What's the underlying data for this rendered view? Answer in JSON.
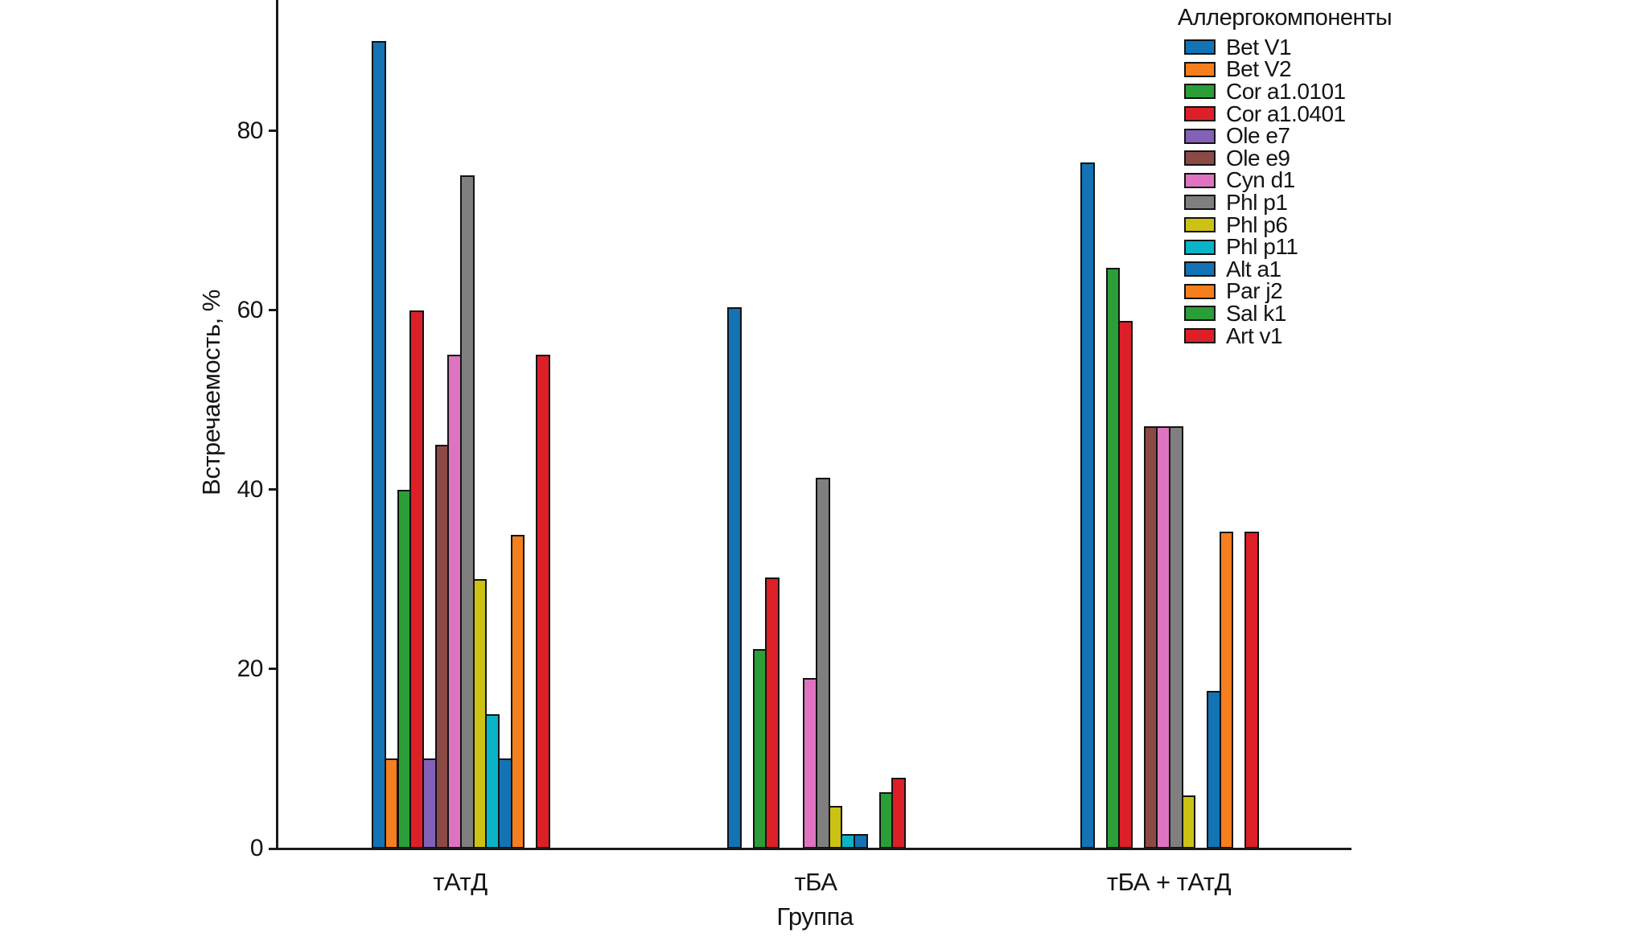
{
  "chart_data": {
    "type": "bar",
    "title": "",
    "xlabel": "Группа",
    "ylabel": "Встречаемость, %",
    "legend_title": "Аллергокомпоненты",
    "legend_position": "top-right",
    "grid": false,
    "ylim": [
      0,
      94
    ],
    "yticks": [
      0,
      20,
      40,
      60,
      80
    ],
    "categories": [
      "тАтД",
      "тБА",
      "тБА + тАтД"
    ],
    "series": [
      {
        "name": "Bet V1",
        "color": "#1373b4",
        "values": [
          90,
          60.3,
          76.5
        ]
      },
      {
        "name": "Bet V2",
        "color": "#f57e1f",
        "values": [
          10,
          0,
          0
        ]
      },
      {
        "name": "Cor a1.0101",
        "color": "#2b9e37",
        "values": [
          40,
          22.2,
          64.7
        ]
      },
      {
        "name": "Cor a1.0401",
        "color": "#dd2028",
        "values": [
          60,
          30.2,
          58.8
        ]
      },
      {
        "name": "Ole e7",
        "color": "#8361b8",
        "values": [
          10,
          0,
          0
        ]
      },
      {
        "name": "Ole e9",
        "color": "#8b4a45",
        "values": [
          45,
          0,
          47.1
        ]
      },
      {
        "name": "Cyn d1",
        "color": "#de74c1",
        "values": [
          55,
          19,
          47.1
        ]
      },
      {
        "name": "Phl p1",
        "color": "#7f7f7f",
        "values": [
          75,
          41.3,
          47.1
        ]
      },
      {
        "name": "Phl p6",
        "color": "#ccc214",
        "values": [
          30,
          4.8,
          5.9
        ]
      },
      {
        "name": "Phl p11",
        "color": "#0ab4c8",
        "values": [
          15,
          1.6,
          0
        ]
      },
      {
        "name": "Alt a1",
        "color": "#1373b4",
        "values": [
          10,
          1.6,
          17.6
        ]
      },
      {
        "name": "Par j2",
        "color": "#f57e1f",
        "values": [
          35,
          0,
          35.3
        ]
      },
      {
        "name": "Sal k1",
        "color": "#2b9e37",
        "values": [
          0,
          6.3,
          0
        ]
      },
      {
        "name": "Art v1",
        "color": "#dd2028",
        "values": [
          55,
          7.9,
          35.3
        ]
      }
    ]
  }
}
